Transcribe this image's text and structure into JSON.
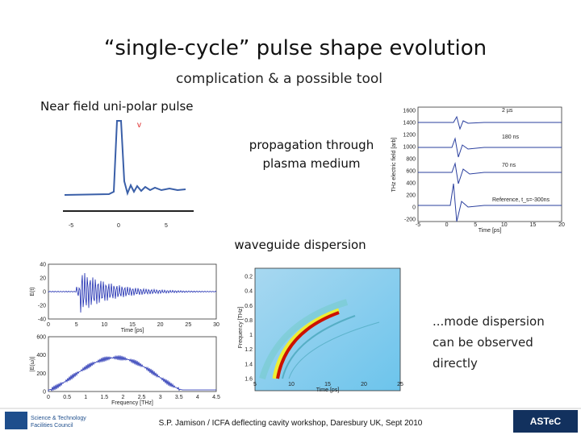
{
  "title": "“single-cycle” pulse shape evolution",
  "subtitle": "complication & a possible tool",
  "labels": {
    "near_field": "Near field uni-polar pulse",
    "plasma": [
      "propagation through",
      "plasma medium"
    ],
    "waveguide": "waveguide dispersion",
    "mode": [
      "...mode dispersion",
      "can be observed",
      "directly"
    ]
  },
  "footer": "S.P. Jamison / ICFA deflecting cavity workshop, Daresbury UK, Sept 2010",
  "logos": {
    "left": [
      "Science & Technology",
      "Facilities Council"
    ],
    "right": "ASTeC"
  },
  "plots": {
    "near": {
      "xticks": [
        "-5",
        "0",
        "5"
      ]
    },
    "plasma": {
      "yticks": [
        "1600",
        "1400",
        "1200",
        "1000",
        "800",
        "600",
        "400",
        "200",
        "0",
        "-200"
      ],
      "xticks": [
        "-5",
        "0",
        "5",
        "10",
        "15",
        "20"
      ],
      "xlabel": "Time [ps]",
      "ylabel": "THz electric field [arb]",
      "annotations": [
        "2 µs",
        "180 ns",
        "70 ns",
        "Reference, t_s=-300ns"
      ]
    },
    "time": {
      "yticks": [
        "40",
        "20",
        "0",
        "-20",
        "-40"
      ],
      "xticks": [
        "0",
        "5",
        "10",
        "15",
        "20",
        "25",
        "30"
      ],
      "xlabel": "Time [ps]",
      "ylabel": "E(t)"
    },
    "spectrum": {
      "yticks": [
        "600",
        "400",
        "200",
        "0"
      ],
      "xticks": [
        "0",
        "0.5",
        "1",
        "1.5",
        "2",
        "2.5",
        "3",
        "3.5",
        "4",
        "4.5"
      ],
      "xlabel": "Frequency [THz]",
      "ylabel": "|E(ω)|"
    },
    "spectrogram": {
      "yticks": [
        "0.2",
        "0.4",
        "0.6",
        "0.8",
        "1",
        "1.2",
        "1.4",
        "1.6"
      ],
      "xticks": [
        "5",
        "10",
        "15",
        "20",
        "25"
      ],
      "xlabel": "Time [ps]",
      "ylabel": "Frequency [THz]"
    }
  }
}
